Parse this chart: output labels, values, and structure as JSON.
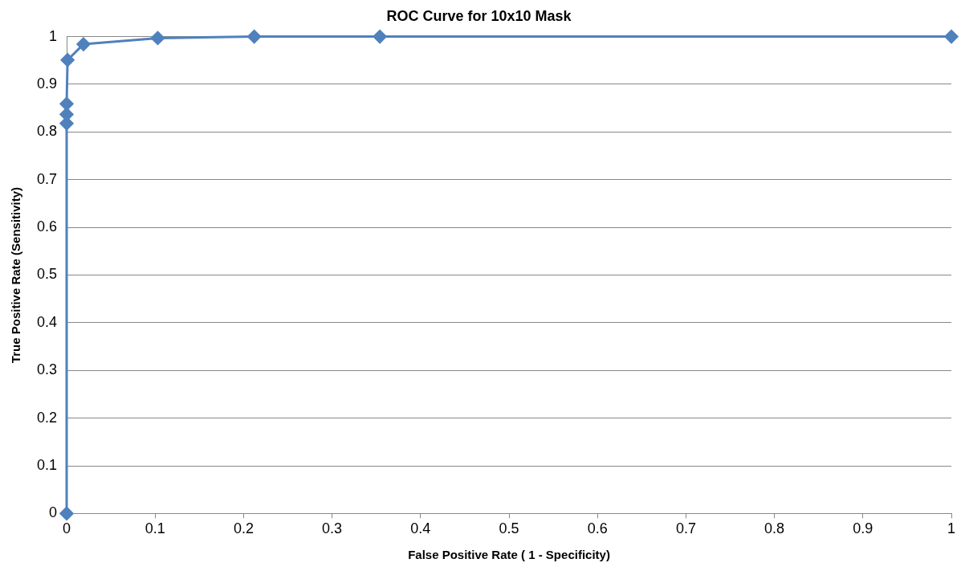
{
  "chart_data": {
    "type": "line",
    "title": "ROC Curve for 10x10 Mask",
    "xlabel": "False Positive Rate ( 1 - Specificity)",
    "ylabel": "True Positive Rate (Sensitivity)",
    "series": [
      {
        "color": "#4f81bd",
        "x": [
          0,
          0,
          0,
          0,
          0.001,
          0.019,
          0.103,
          0.212,
          0.354,
          1
        ],
        "values": [
          0,
          0.818,
          0.837,
          0.859,
          0.951,
          0.984,
          0.997,
          1,
          1,
          1
        ]
      }
    ],
    "xlim": [
      0,
      1
    ],
    "xticks": [
      0,
      0.1,
      0.2,
      0.3,
      0.4,
      0.5,
      0.6,
      0.7,
      0.8,
      0.9,
      1
    ],
    "ylim": [
      0,
      1
    ],
    "yticks": [
      0,
      0.1,
      0.2,
      0.3,
      0.4,
      0.5,
      0.6,
      0.7,
      0.8,
      0.9,
      1
    ],
    "grid": "y",
    "legend": false,
    "marker": "diamond",
    "line_style": "solid"
  }
}
